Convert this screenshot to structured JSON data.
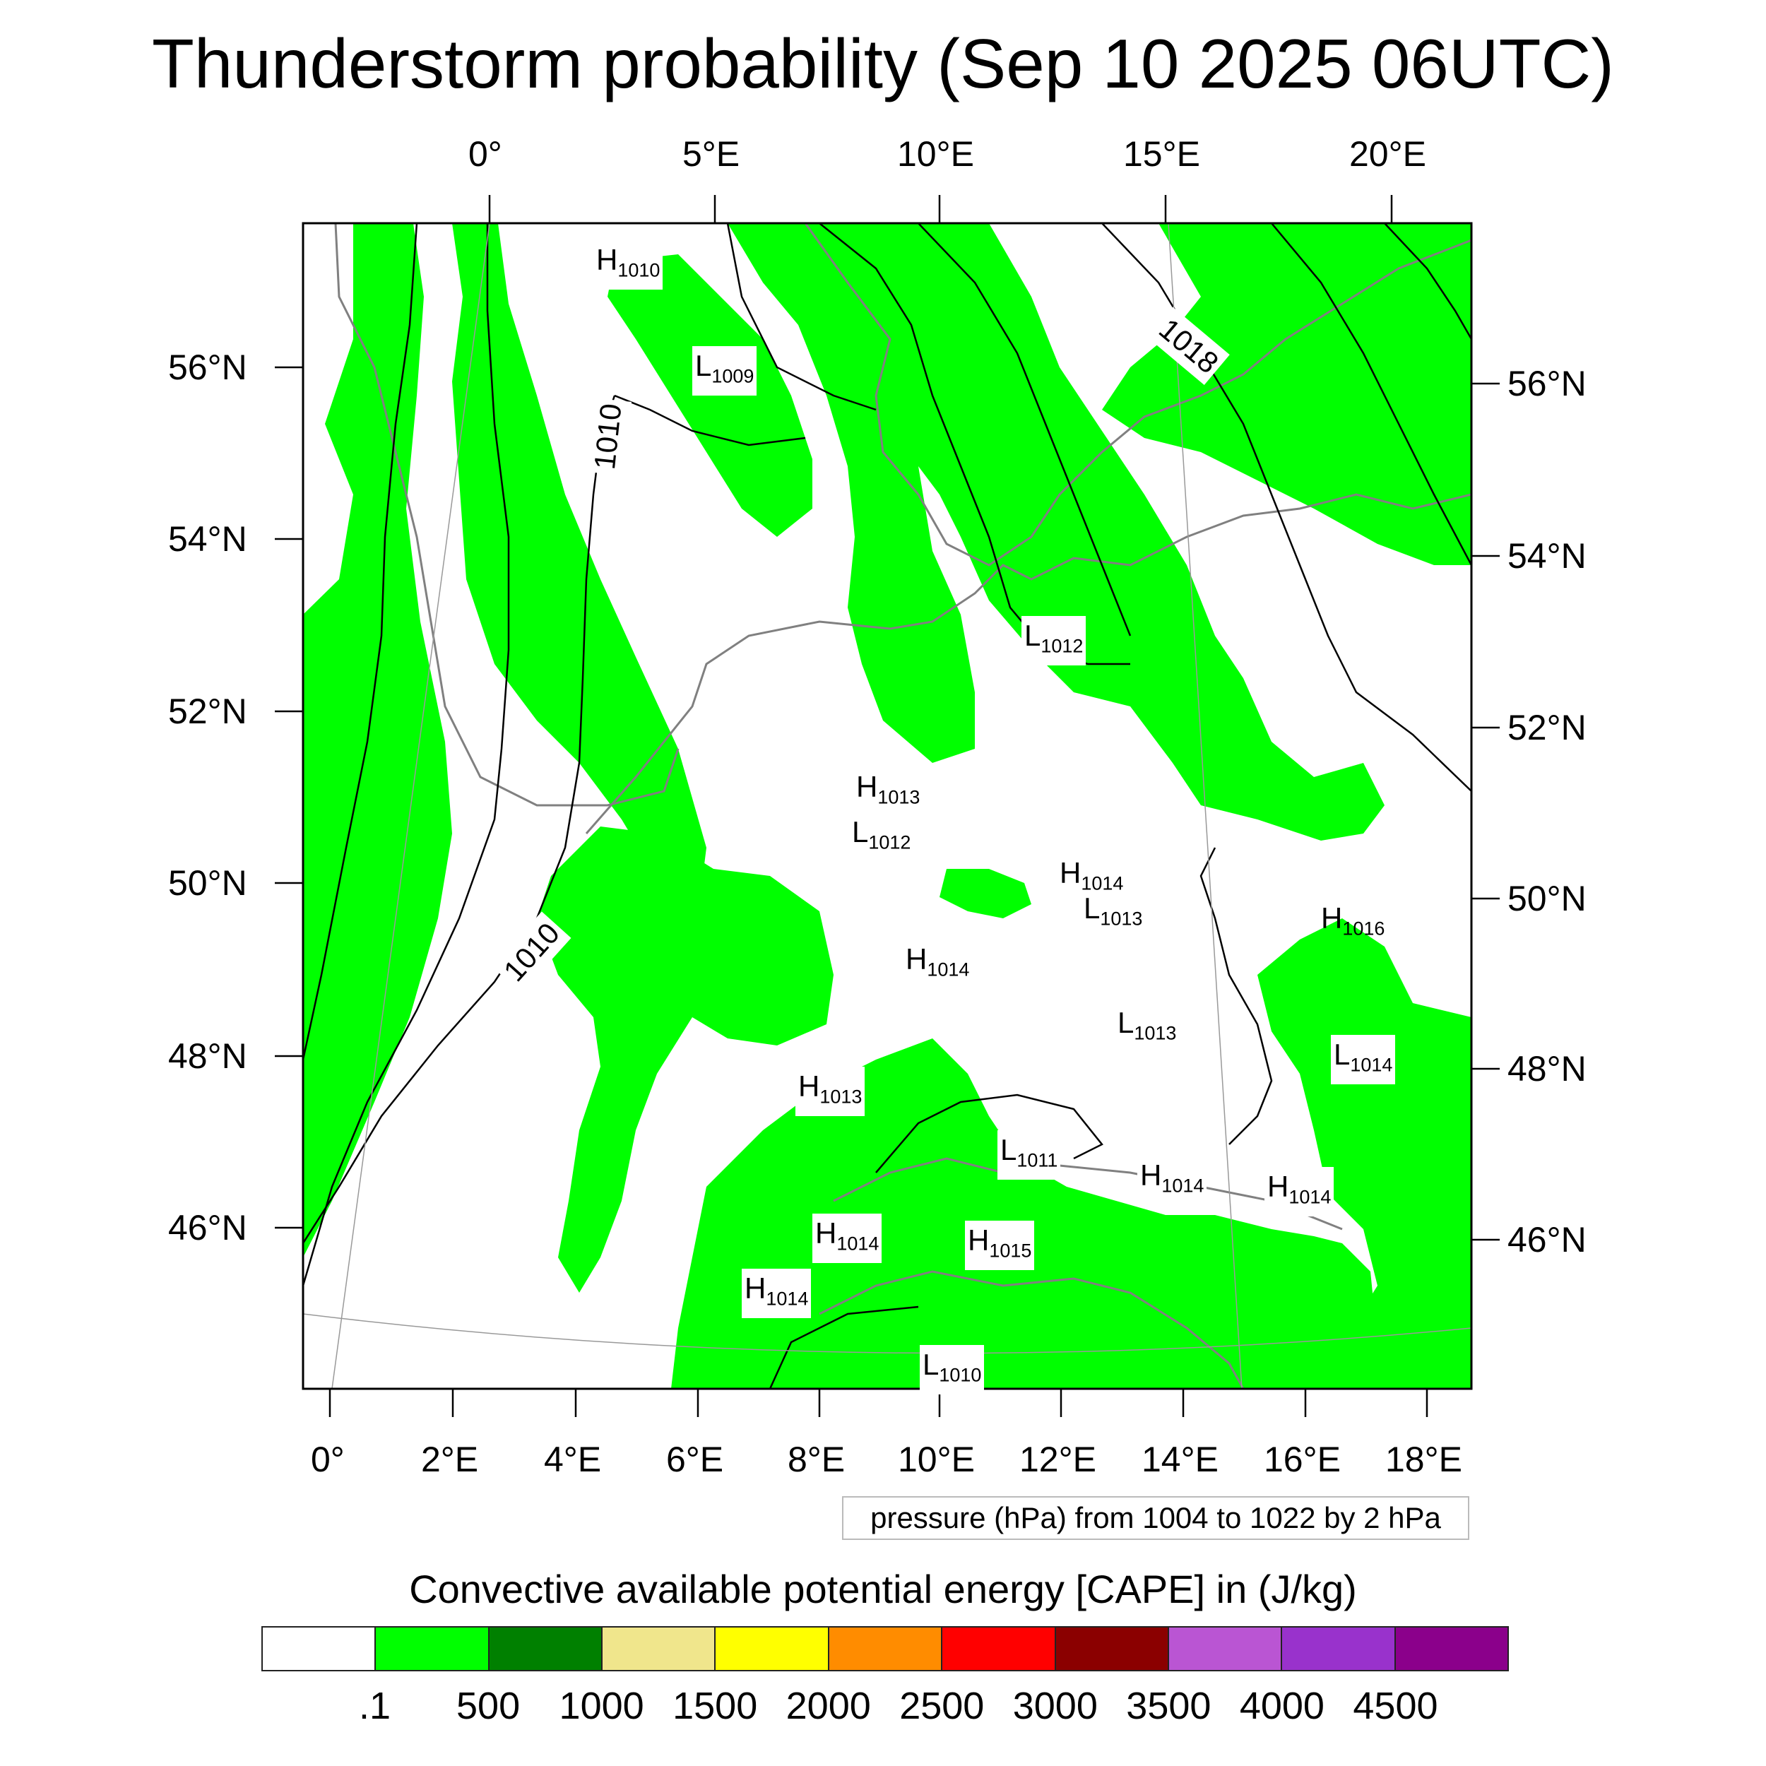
{
  "title": "Thunderstorm probability (Sep 10 2025 06UTC)",
  "map": {
    "top_lon_labels": [
      "0°",
      "5°E",
      "10°E",
      "15°E",
      "20°E"
    ],
    "bottom_lon_labels": [
      "0°",
      "2°E",
      "4°E",
      "6°E",
      "8°E",
      "10°E",
      "12°E",
      "14°E",
      "16°E",
      "18°E"
    ],
    "left_lat_labels": [
      "56°N",
      "54°N",
      "52°N",
      "50°N",
      "48°N",
      "46°N"
    ],
    "right_lat_labels": [
      "56°N",
      "54°N",
      "52°N",
      "50°N",
      "48°N",
      "46°N"
    ],
    "pressure_centers": [
      {
        "type": "H",
        "value": "1010"
      },
      {
        "type": "L",
        "value": "1009"
      },
      {
        "type": "L",
        "value": "1012"
      },
      {
        "type": "H",
        "value": "1013"
      },
      {
        "type": "L",
        "value": "1012"
      },
      {
        "type": "H",
        "value": "1014"
      },
      {
        "type": "L",
        "value": "1013"
      },
      {
        "type": "H",
        "value": "1016"
      },
      {
        "type": "H",
        "value": "1014"
      },
      {
        "type": "L",
        "value": "1013"
      },
      {
        "type": "L",
        "value": "1014"
      },
      {
        "type": "H",
        "value": "1013"
      },
      {
        "type": "L",
        "value": "1011"
      },
      {
        "type": "H",
        "value": "1014"
      },
      {
        "type": "H",
        "value": "1014"
      },
      {
        "type": "H",
        "value": "1014"
      },
      {
        "type": "H",
        "value": "1015"
      },
      {
        "type": "H",
        "value": "1014"
      },
      {
        "type": "L",
        "value": "1010"
      }
    ],
    "isobar_labels": [
      "1010",
      "1010",
      "1018"
    ],
    "pressure_note": "pressure (hPa) from 1004 to 1022 by 2 hPa"
  },
  "colorbar": {
    "title": "Convective available potential energy [CAPE] in (J/kg)",
    "colors": [
      "#ffffff",
      "#00ff00",
      "#008000",
      "#f0e68c",
      "#ffff00",
      "#ff8c00",
      "#ff0000",
      "#8b0000",
      "#ba55d3",
      "#9932cc",
      "#8b008b"
    ],
    "ticks": [
      ".1",
      "500",
      "1000",
      "1500",
      "2000",
      "2500",
      "3000",
      "3500",
      "4000",
      "4500"
    ]
  }
}
